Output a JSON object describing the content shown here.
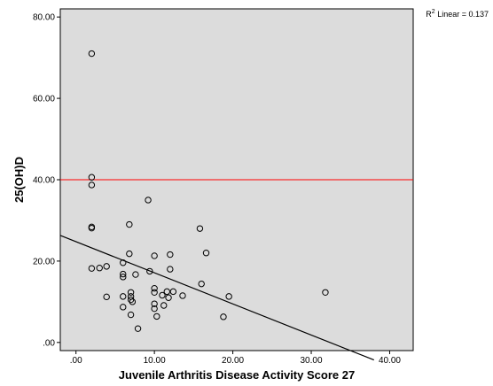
{
  "chart_data": {
    "type": "scatter",
    "xlabel": "Juvenile Arthritis Disease Activity Score 27",
    "ylabel": "25(OH)D",
    "xlim": [
      -2,
      43
    ],
    "ylim": [
      -2,
      82
    ],
    "x_ticks": [
      0,
      10,
      20,
      30,
      40
    ],
    "x_tick_labels": [
      ".00",
      "10.00",
      "20.00",
      "30.00",
      "40.00"
    ],
    "y_ticks": [
      0,
      20,
      40,
      60,
      80
    ],
    "y_tick_labels": [
      ".00",
      "20.00",
      "40.00",
      "60.00",
      "80.00"
    ],
    "grid": false,
    "background": "#dcdcdc",
    "points": [
      [
        2,
        71
      ],
      [
        2,
        40.6
      ],
      [
        2,
        38.7
      ],
      [
        2,
        28.4
      ],
      [
        2,
        28.1
      ],
      [
        2,
        18.2
      ],
      [
        3,
        18.3
      ],
      [
        3.9,
        18.7
      ],
      [
        3.9,
        11.2
      ],
      [
        6,
        19.6
      ],
      [
        6,
        16.8
      ],
      [
        6,
        16.1
      ],
      [
        6,
        11.3
      ],
      [
        6,
        8.7
      ],
      [
        6.8,
        29.0
      ],
      [
        6.8,
        21.8
      ],
      [
        7,
        12.3
      ],
      [
        7,
        11.3
      ],
      [
        7,
        10.5
      ],
      [
        7.2,
        10.0
      ],
      [
        7,
        6.8
      ],
      [
        7.6,
        16.7
      ],
      [
        7.9,
        3.4
      ],
      [
        9.2,
        35.0
      ],
      [
        9.4,
        17.5
      ],
      [
        10,
        21.3
      ],
      [
        10,
        13.3
      ],
      [
        10,
        12.3
      ],
      [
        10,
        9.5
      ],
      [
        10,
        8.3
      ],
      [
        10.3,
        6.4
      ],
      [
        11,
        11.6
      ],
      [
        11.2,
        9.1
      ],
      [
        11.6,
        12.5
      ],
      [
        11.8,
        11.0
      ],
      [
        12,
        21.6
      ],
      [
        12,
        18.0
      ],
      [
        12.4,
        12.5
      ],
      [
        13.6,
        11.5
      ],
      [
        15.8,
        28.0
      ],
      [
        16,
        14.4
      ],
      [
        16.6,
        22.0
      ],
      [
        18.8,
        6.3
      ],
      [
        19.5,
        11.3
      ],
      [
        31.8,
        12.3
      ]
    ],
    "fit_line": {
      "label": "R2 Linear = 0.137",
      "x": [
        -2,
        38
      ],
      "y": [
        26.3,
        -4.3
      ]
    },
    "reference_line": {
      "y": 40,
      "color": "#ff0000"
    },
    "r2": {
      "prefix": "R",
      "sup": "2",
      "text": " Linear = 0.137",
      "placement": "top-right"
    }
  }
}
